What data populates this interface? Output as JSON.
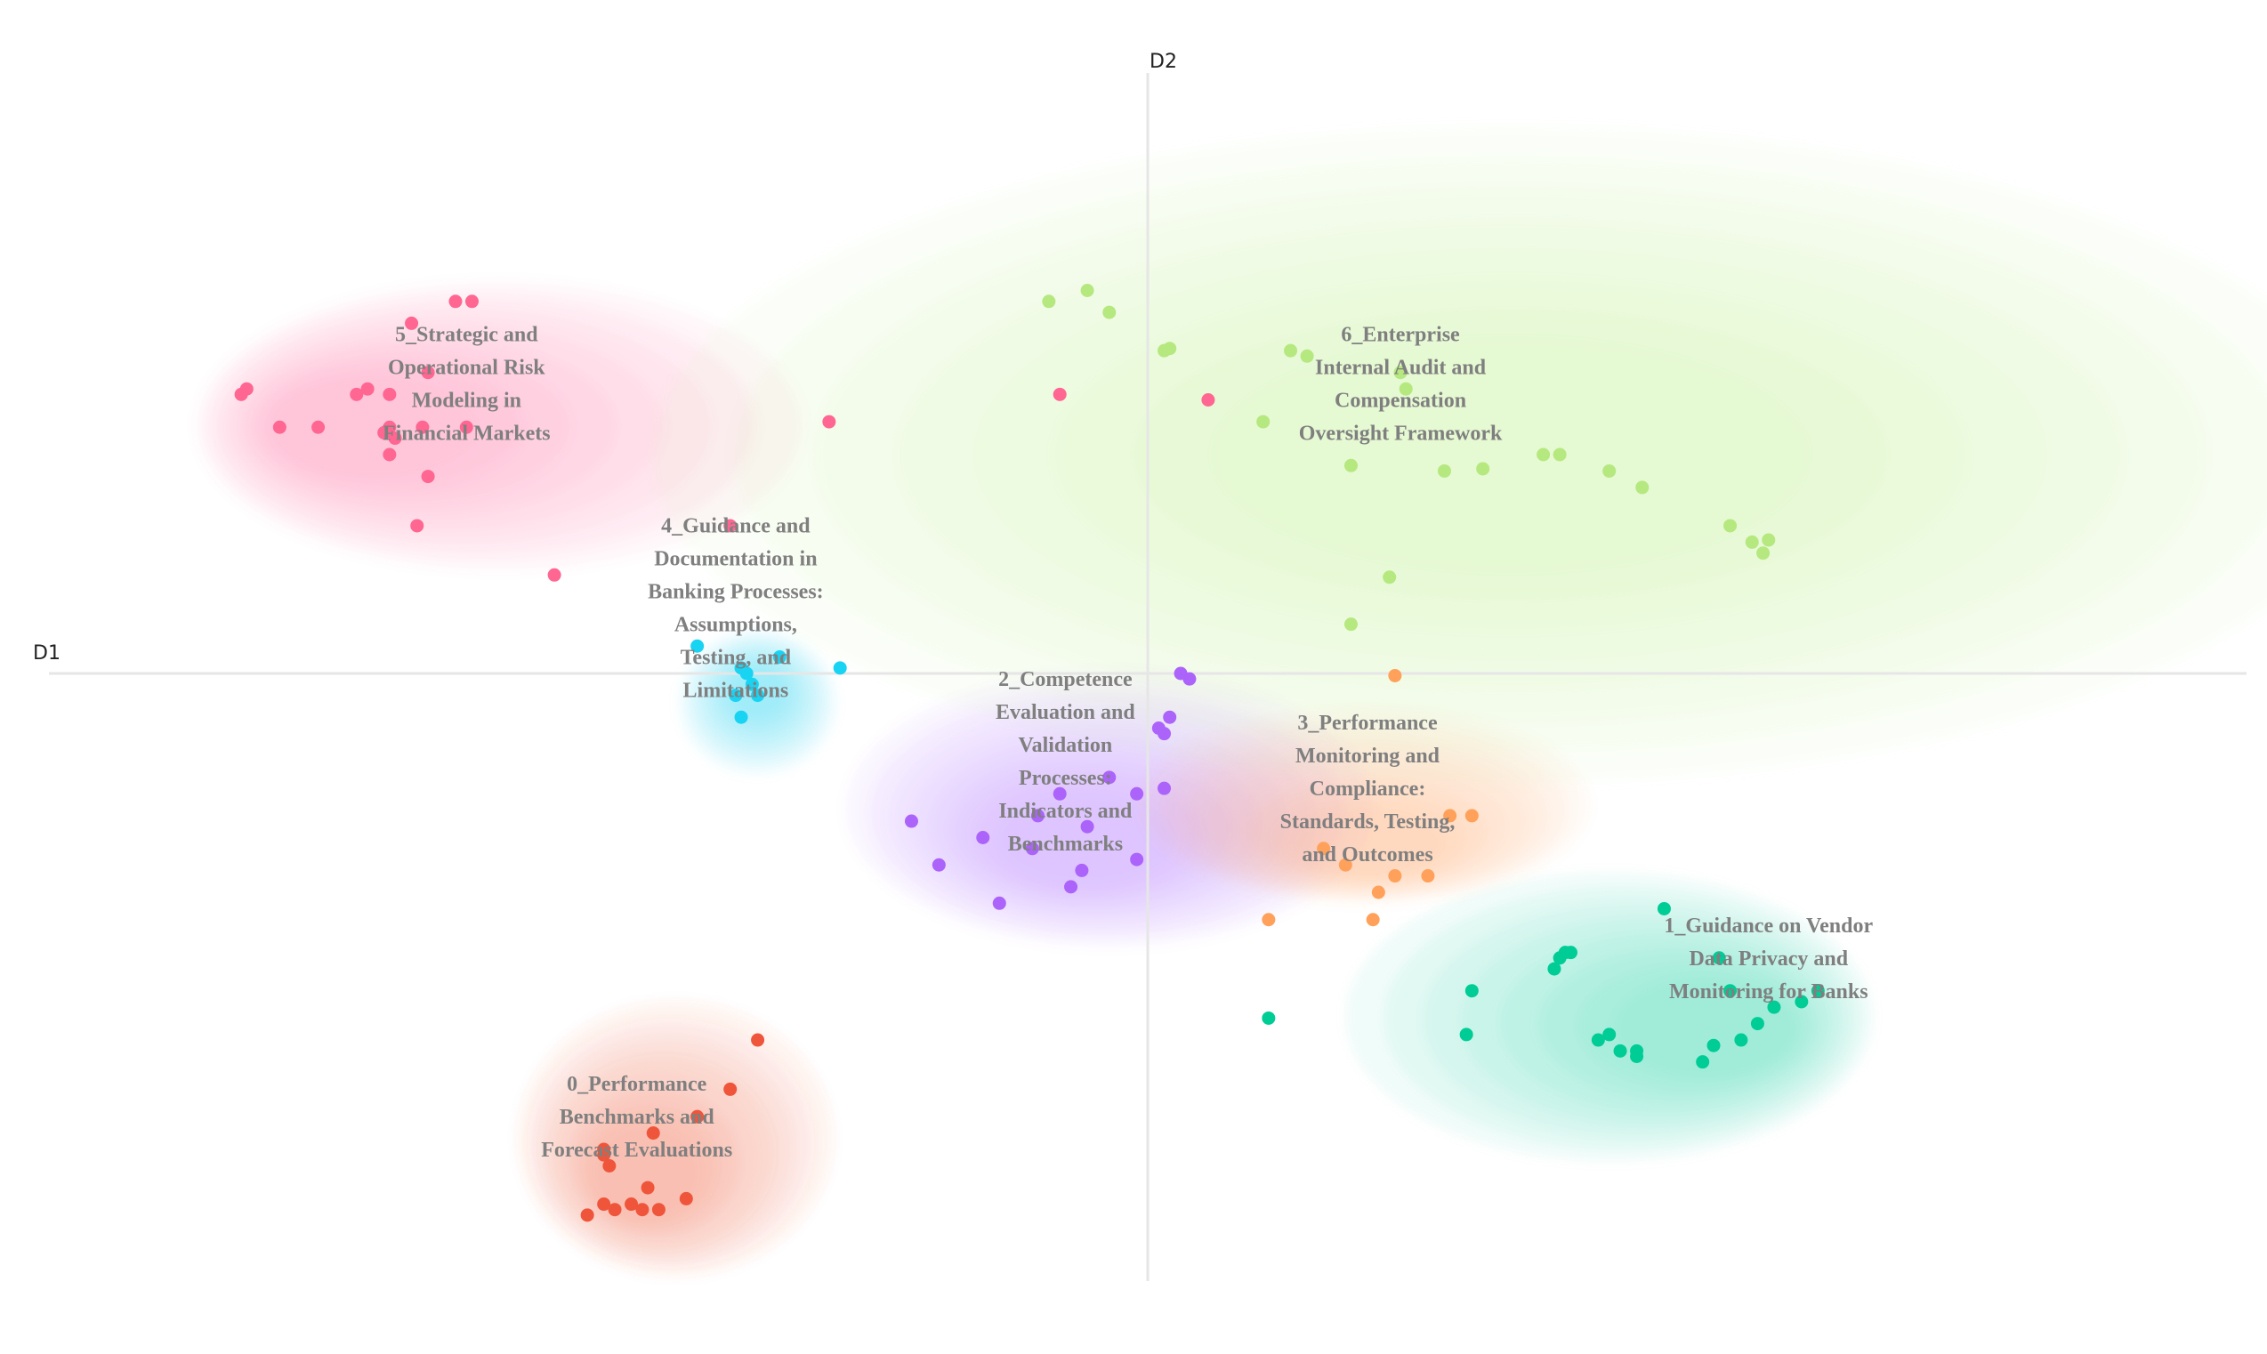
{
  "chart_data": {
    "type": "scatter",
    "title": "",
    "xlabel": "D1",
    "ylabel": "D2",
    "xlim": [
      -10,
      10
    ],
    "ylim": [
      -5.5,
      5.5
    ],
    "grid": false,
    "legend": "none",
    "series": [
      {
        "id": "c0",
        "name": "0_Performance Benchmarks and Forecast Evaluations",
        "label_lines": [
          "0_Performance",
          "Benchmarks and",
          "Forecast Evaluations"
        ],
        "label_center": [
          -4.65,
          -4.05
        ],
        "color": "#ef553b",
        "density": {
          "cx": -4.6,
          "cy": -4.6,
          "rx": 1.2,
          "ry": 1.05,
          "tail_x": -3.4,
          "tail_y": -3.2
        },
        "points": [
          [
            -3.55,
            -3.35
          ],
          [
            -3.8,
            -3.8
          ],
          [
            -4.1,
            -4.05
          ],
          [
            -4.5,
            -4.2
          ],
          [
            -4.95,
            -4.35
          ],
          [
            -4.95,
            -4.4
          ],
          [
            -4.9,
            -4.5
          ],
          [
            -4.55,
            -4.7
          ],
          [
            -4.95,
            -4.85
          ],
          [
            -4.85,
            -4.9
          ],
          [
            -4.7,
            -4.85
          ],
          [
            -4.6,
            -4.9
          ],
          [
            -4.45,
            -4.9
          ],
          [
            -4.2,
            -4.8
          ],
          [
            -5.1,
            -4.95
          ]
        ]
      },
      {
        "id": "c1",
        "name": "1_Guidance on Vendor Data Privacy and Monitoring for Banks",
        "label_lines": [
          "1_Guidance on Vendor",
          "Data Privacy and",
          "Monitoring for Banks"
        ],
        "label_center": [
          5.65,
          -2.6
        ],
        "color": "#00cc96",
        "density": {
          "cx": 5.2,
          "cy": -3.25,
          "rx": 2.0,
          "ry": 1.1,
          "tail_x": 1.2,
          "tail_y": -2.8
        },
        "points": [
          [
            4.7,
            -2.15
          ],
          [
            3.8,
            -2.55
          ],
          [
            3.85,
            -2.55
          ],
          [
            5.2,
            -2.6
          ],
          [
            3.7,
            -2.7
          ],
          [
            2.95,
            -2.9
          ],
          [
            5.3,
            -2.9
          ],
          [
            6.1,
            -2.9
          ],
          [
            5.95,
            -3.0
          ],
          [
            5.7,
            -3.05
          ],
          [
            5.55,
            -3.2
          ],
          [
            2.9,
            -3.3
          ],
          [
            4.2,
            -3.3
          ],
          [
            4.1,
            -3.35
          ],
          [
            5.15,
            -3.4
          ],
          [
            5.4,
            -3.35
          ],
          [
            4.3,
            -3.45
          ],
          [
            4.45,
            -3.45
          ],
          [
            4.45,
            -3.5
          ],
          [
            5.05,
            -3.55
          ],
          [
            1.1,
            -3.15
          ],
          [
            3.75,
            -2.6
          ]
        ]
      },
      {
        "id": "c2",
        "name": "2_Competence Evaluation and Validation Processes: Indicators and Benchmarks",
        "label_lines": [
          "2_Competence",
          "Evaluation and",
          "Validation",
          "Processes:",
          "Indicators and",
          "Benchmarks"
        ],
        "label_center": [
          -0.75,
          -0.8
        ],
        "color": "#ab63fa",
        "density": {
          "cx": -0.6,
          "cy": -1.55,
          "rx": 2.0,
          "ry": 1.05,
          "tail_x": 0.4,
          "tail_y": -0.3
        },
        "points": [
          [
            0.3,
            0.0
          ],
          [
            0.38,
            -0.05
          ],
          [
            0.2,
            -0.4
          ],
          [
            0.1,
            -0.5
          ],
          [
            0.15,
            -0.55
          ],
          [
            -0.35,
            -0.95
          ],
          [
            0.15,
            -1.05
          ],
          [
            -0.1,
            -1.1
          ],
          [
            -0.8,
            -1.1
          ],
          [
            -1.0,
            -1.3
          ],
          [
            -0.55,
            -1.4
          ],
          [
            -2.15,
            -1.35
          ],
          [
            -1.5,
            -1.5
          ],
          [
            -1.05,
            -1.6
          ],
          [
            -1.9,
            -1.75
          ],
          [
            -0.6,
            -1.8
          ],
          [
            -0.1,
            -1.7
          ],
          [
            -0.7,
            -1.95
          ],
          [
            -1.35,
            -2.1
          ]
        ]
      },
      {
        "id": "c3",
        "name": "3_Performance Monitoring and Compliance: Standards, Testing, and Outcomes",
        "label_lines": [
          "3_Performance",
          "Monitoring and",
          "Compliance:",
          "Standards, Testing,",
          "and Outcomes"
        ],
        "label_center": [
          2.0,
          -1.05
        ],
        "color": "#ffa15a",
        "density": {
          "cx": 2.0,
          "cy": -1.6,
          "rx": 1.7,
          "ry": 0.75,
          "tail_x": 1.9,
          "tail_y": 0.0
        },
        "points": [
          [
            2.25,
            -0.02
          ],
          [
            2.75,
            -1.3
          ],
          [
            2.95,
            -1.3
          ],
          [
            1.6,
            -1.6
          ],
          [
            1.8,
            -1.75
          ],
          [
            2.25,
            -1.85
          ],
          [
            2.55,
            -1.85
          ],
          [
            2.1,
            -2.0
          ],
          [
            2.05,
            -2.25
          ],
          [
            1.1,
            -2.25
          ]
        ]
      },
      {
        "id": "c4",
        "name": "4_Guidance and Documentation in Banking Processes: Assumptions, Testing, and Limitations",
        "label_lines": [
          "4_Guidance and",
          "Documentation in",
          "Banking Processes:",
          "Assumptions,",
          "Testing, and",
          "Limitations"
        ],
        "label_center": [
          -3.75,
          0.6
        ],
        "color": "#19d3f3",
        "density": {
          "cx": -3.55,
          "cy": -0.15,
          "rx": 0.6,
          "ry": 0.55,
          "tail_x": -3.55,
          "tail_y": -0.6
        },
        "points": [
          [
            -4.1,
            0.25
          ],
          [
            -3.35,
            0.15
          ],
          [
            -2.8,
            0.05
          ],
          [
            -3.7,
            0.05
          ],
          [
            -3.65,
            0.0
          ],
          [
            -3.6,
            -0.1
          ],
          [
            -3.75,
            -0.2
          ],
          [
            -3.55,
            -0.2
          ],
          [
            -3.7,
            -0.4
          ]
        ]
      },
      {
        "id": "c5",
        "name": "5_Strategic and Operational Risk Modeling in Financial Markets",
        "label_lines": [
          "5_Strategic and",
          "Operational Risk",
          "Modeling in",
          "Financial Markets"
        ],
        "label_center": [
          -6.2,
          2.65
        ],
        "color": "#ff6692",
        "density": {
          "cx": -7.2,
          "cy": 2.25,
          "rx": 2.3,
          "ry": 1.1,
          "tail_x": -2.0,
          "tail_y": 2.3
        },
        "points": [
          [
            -6.3,
            3.4
          ],
          [
            -6.15,
            3.4
          ],
          [
            -6.7,
            3.2
          ],
          [
            -6.55,
            2.75
          ],
          [
            -8.2,
            2.6
          ],
          [
            -8.25,
            2.55
          ],
          [
            -7.1,
            2.6
          ],
          [
            -7.2,
            2.55
          ],
          [
            -6.9,
            2.55
          ],
          [
            -7.9,
            2.25
          ],
          [
            -7.55,
            2.25
          ],
          [
            -6.9,
            2.25
          ],
          [
            -6.6,
            2.25
          ],
          [
            -6.95,
            2.2
          ],
          [
            -6.85,
            2.15
          ],
          [
            -6.2,
            2.25
          ],
          [
            -6.9,
            2.0
          ],
          [
            -6.55,
            1.8
          ],
          [
            -6.65,
            1.35
          ],
          [
            -3.8,
            1.35
          ],
          [
            -5.4,
            0.9
          ],
          [
            -2.9,
            2.3
          ],
          [
            -0.8,
            2.55
          ],
          [
            0.55,
            2.5
          ]
        ]
      },
      {
        "id": "c6",
        "name": "6_Enterprise Internal Audit and Compensation Oversight Framework",
        "label_lines": [
          "6_Enterprise",
          "Internal Audit and",
          "Compensation",
          "Oversight Framework"
        ],
        "label_center": [
          2.3,
          2.65
        ],
        "color": "#b6e880",
        "density": {
          "cx": 3.3,
          "cy": 2.0,
          "rx": 6.5,
          "ry": 2.5,
          "tail_x": 3.3,
          "tail_y": 2.0
        },
        "points": [
          [
            -0.9,
            3.4
          ],
          [
            -0.55,
            3.5
          ],
          [
            -0.35,
            3.3
          ],
          [
            0.15,
            2.95
          ],
          [
            0.2,
            2.97
          ],
          [
            1.3,
            2.95
          ],
          [
            1.45,
            2.9
          ],
          [
            2.3,
            2.75
          ],
          [
            2.35,
            2.6
          ],
          [
            1.05,
            2.3
          ],
          [
            1.85,
            1.9
          ],
          [
            2.7,
            1.85
          ],
          [
            3.05,
            1.87
          ],
          [
            3.6,
            2.0
          ],
          [
            3.75,
            2.0
          ],
          [
            4.2,
            1.85
          ],
          [
            4.5,
            1.7
          ],
          [
            5.3,
            1.35
          ],
          [
            5.5,
            1.2
          ],
          [
            5.65,
            1.22
          ],
          [
            5.6,
            1.1
          ],
          [
            2.2,
            0.88
          ],
          [
            1.85,
            0.45
          ]
        ]
      }
    ]
  }
}
